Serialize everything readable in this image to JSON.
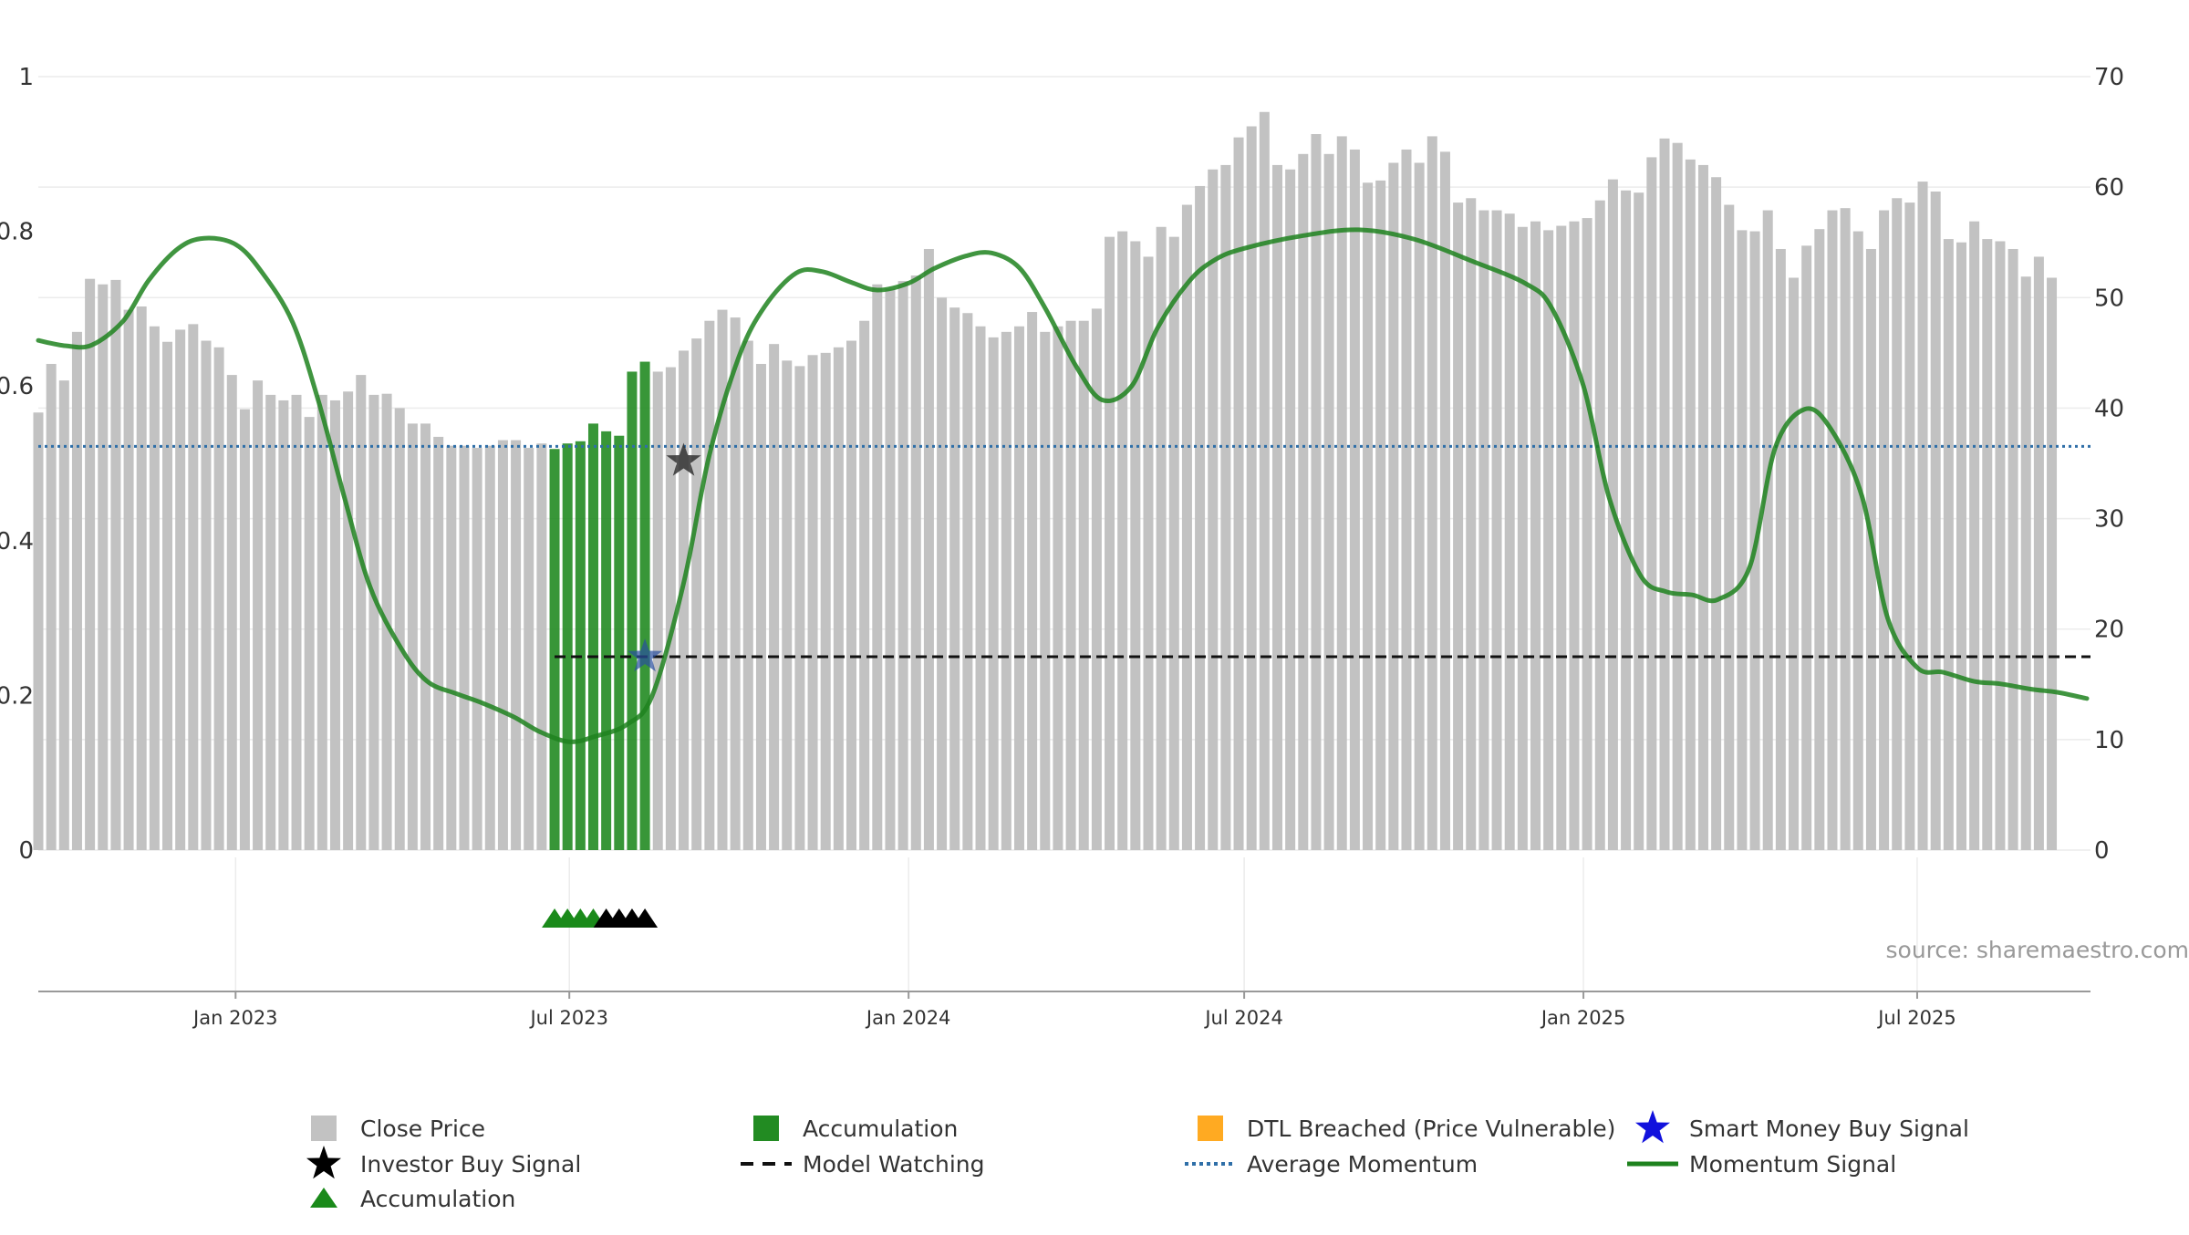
{
  "chart_data": {
    "type": "bar",
    "title": "",
    "source": "source: sharemaestro.com",
    "x_axis": {
      "range": [
        "2022-09-16",
        "2025-10-03"
      ],
      "ticks": [
        {
          "date": "2023-01-01",
          "label": "Jan 2023"
        },
        {
          "date": "2023-07-01",
          "label": "Jul 2023"
        },
        {
          "date": "2024-01-01",
          "label": "Jan 2024"
        },
        {
          "date": "2024-07-01",
          "label": "Jul 2024"
        },
        {
          "date": "2025-01-01",
          "label": "Jan 2025"
        },
        {
          "date": "2025-07-01",
          "label": "Jul 2025"
        }
      ]
    },
    "left_axis": {
      "min": 0,
      "max": 1,
      "ticks": [
        0,
        0.2,
        0.4,
        0.6,
        0.8,
        1
      ],
      "tick_labels": [
        "0",
        "0.2",
        "0.4",
        "0.6",
        "0.8",
        "1"
      ]
    },
    "right_axis": {
      "min": 0,
      "max": 70,
      "ticks": [
        0,
        10,
        20,
        30,
        40,
        50,
        60,
        70
      ],
      "tick_labels": [
        "0",
        "10",
        "20",
        "30",
        "40",
        "50",
        "60",
        "70"
      ]
    },
    "grid": true,
    "bar_start_date": "2022-09-16",
    "bar_interval_days": 7,
    "close_price": [
      39.6,
      44.0,
      42.5,
      46.9,
      51.7,
      51.2,
      51.6,
      48.9,
      49.2,
      47.4,
      46.0,
      47.1,
      47.6,
      46.1,
      45.5,
      43.0,
      39.9,
      42.5,
      41.2,
      40.7,
      41.2,
      39.2,
      41.2,
      40.7,
      41.5,
      43.0,
      41.2,
      41.3,
      40.0,
      38.6,
      38.6,
      37.4,
      36.6,
      36.6,
      36.4,
      36.6,
      37.1,
      37.1,
      36.4,
      36.8,
      37.0,
      38.6,
      37.9,
      37.5,
      43.3,
      44.2,
      43.0,
      43.7,
      43.3,
      43.7,
      45.2,
      46.3,
      47.9,
      48.9,
      48.2,
      46.1,
      44.0,
      45.8,
      44.3,
      43.8,
      44.8,
      45.0,
      45.5,
      46.1,
      47.9,
      51.2,
      50.8,
      51.5,
      52.0,
      54.4,
      50.0,
      49.1,
      48.6,
      47.4,
      46.4,
      46.9,
      47.4,
      48.7,
      46.9,
      47.4,
      47.9,
      47.9,
      49.0,
      55.5,
      56.0,
      55.1,
      53.7,
      56.4,
      55.5,
      58.4,
      60.1,
      61.6,
      62.0,
      64.5,
      65.5,
      66.8,
      62.0,
      61.6,
      63.0,
      64.8,
      63.0,
      64.6,
      63.4,
      60.4,
      60.6,
      62.2,
      63.4,
      62.2,
      64.6,
      63.2,
      58.6,
      59.0,
      57.9,
      57.9,
      57.6,
      56.4,
      56.9,
      56.1,
      56.5,
      56.9,
      57.2,
      58.8,
      60.7,
      59.7,
      59.5,
      62.7,
      64.4,
      64.0,
      62.5,
      62.0,
      60.9,
      58.4,
      56.1,
      56.0,
      57.9,
      54.4,
      51.8,
      54.7,
      56.2,
      57.9,
      58.1,
      56.0,
      54.4,
      57.9,
      59.0,
      58.6,
      60.5,
      59.6,
      55.3,
      55.0,
      56.9,
      55.3,
      55.1,
      54.4,
      51.9,
      53.7,
      51.8
    ],
    "accumulation_bars": [
      {
        "date": "2023-06-23",
        "value": 36.3
      },
      {
        "date": "2023-06-30",
        "value": 36.8
      },
      {
        "date": "2023-07-07",
        "value": 37.0
      },
      {
        "date": "2023-07-14",
        "value": 38.6
      },
      {
        "date": "2023-07-21",
        "value": 37.9
      },
      {
        "date": "2023-07-28",
        "value": 37.5
      },
      {
        "date": "2023-08-04",
        "value": 43.3
      },
      {
        "date": "2023-08-11",
        "value": 44.2
      }
    ],
    "momentum_signal": [
      [
        "2022-09-16",
        0.659
      ],
      [
        "2022-10-01",
        0.652
      ],
      [
        "2022-10-15",
        0.653
      ],
      [
        "2022-11-01",
        0.684
      ],
      [
        "2022-11-15",
        0.737
      ],
      [
        "2022-12-01",
        0.778
      ],
      [
        "2022-12-15",
        0.791
      ],
      [
        "2023-01-01",
        0.783
      ],
      [
        "2023-01-15",
        0.748
      ],
      [
        "2023-02-01",
        0.682
      ],
      [
        "2023-02-15",
        0.58
      ],
      [
        "2023-03-01",
        0.456
      ],
      [
        "2023-03-15",
        0.34
      ],
      [
        "2023-04-01",
        0.26
      ],
      [
        "2023-04-15",
        0.218
      ],
      [
        "2023-05-01",
        0.202
      ],
      [
        "2023-05-15",
        0.19
      ],
      [
        "2023-06-01",
        0.172
      ],
      [
        "2023-06-15",
        0.153
      ],
      [
        "2023-07-01",
        0.14
      ],
      [
        "2023-07-15",
        0.147
      ],
      [
        "2023-08-01",
        0.162
      ],
      [
        "2023-08-15",
        0.2
      ],
      [
        "2023-09-01",
        0.345
      ],
      [
        "2023-09-15",
        0.511
      ],
      [
        "2023-10-01",
        0.638
      ],
      [
        "2023-10-15",
        0.703
      ],
      [
        "2023-11-01",
        0.746
      ],
      [
        "2023-11-15",
        0.748
      ],
      [
        "2023-12-01",
        0.734
      ],
      [
        "2023-12-15",
        0.724
      ],
      [
        "2024-01-01",
        0.733
      ],
      [
        "2024-01-15",
        0.752
      ],
      [
        "2024-02-01",
        0.768
      ],
      [
        "2024-02-15",
        0.772
      ],
      [
        "2024-03-01",
        0.753
      ],
      [
        "2024-03-15",
        0.701
      ],
      [
        "2024-04-01",
        0.625
      ],
      [
        "2024-04-15",
        0.582
      ],
      [
        "2024-05-01",
        0.6
      ],
      [
        "2024-05-15",
        0.675
      ],
      [
        "2024-06-01",
        0.735
      ],
      [
        "2024-06-15",
        0.763
      ],
      [
        "2024-07-01",
        0.778
      ],
      [
        "2024-08-01",
        0.794
      ],
      [
        "2024-09-01",
        0.802
      ],
      [
        "2024-10-01",
        0.79
      ],
      [
        "2024-11-01",
        0.762
      ],
      [
        "2024-12-01",
        0.732
      ],
      [
        "2024-12-15",
        0.7
      ],
      [
        "2025-01-01",
        0.6
      ],
      [
        "2025-01-15",
        0.455
      ],
      [
        "2025-02-01",
        0.355
      ],
      [
        "2025-02-15",
        0.334
      ],
      [
        "2025-03-01",
        0.33
      ],
      [
        "2025-03-15",
        0.324
      ],
      [
        "2025-04-01",
        0.365
      ],
      [
        "2025-04-15",
        0.52
      ],
      [
        "2025-05-01",
        0.57
      ],
      [
        "2025-05-15",
        0.545
      ],
      [
        "2025-06-01",
        0.458
      ],
      [
        "2025-06-15",
        0.3
      ],
      [
        "2025-07-01",
        0.236
      ],
      [
        "2025-07-15",
        0.23
      ],
      [
        "2025-08-01",
        0.218
      ],
      [
        "2025-08-15",
        0.215
      ],
      [
        "2025-09-01",
        0.208
      ],
      [
        "2025-09-15",
        0.204
      ],
      [
        "2025-10-01",
        0.196
      ]
    ],
    "average_momentum": 0.522,
    "model_watching": {
      "value": 0.25,
      "start_date": "2023-06-23",
      "end_date": "2025-10-03"
    },
    "investor_buy_signal": {
      "date": "2023-09-01",
      "value": 0.503
    },
    "smart_money_buy_signal": {
      "date": "2023-08-11",
      "value": 0.25
    },
    "markers": [
      {
        "date": "2023-06-23",
        "type": "Accumulation"
      },
      {
        "date": "2023-06-30",
        "type": "Accumulation"
      },
      {
        "date": "2023-07-07",
        "type": "Accumulation"
      },
      {
        "date": "2023-07-14",
        "type": "Accumulation"
      },
      {
        "date": "2023-07-21",
        "type": "Investor Buy Signal"
      },
      {
        "date": "2023-07-28",
        "type": "Investor Buy Signal"
      },
      {
        "date": "2023-08-04",
        "type": "Investor Buy Signal"
      },
      {
        "date": "2023-08-11",
        "type": "Investor Buy Signal"
      }
    ],
    "legend": {
      "placement": "bottom",
      "items": [
        {
          "key": "close",
          "label": "Close Price"
        },
        {
          "key": "accum_bar",
          "label": "Accumulation"
        },
        {
          "key": "dtl",
          "label": "DTL Breached (Price Vulnerable)"
        },
        {
          "key": "smart",
          "label": "Smart Money Buy Signal"
        },
        {
          "key": "investor",
          "label": "Investor Buy Signal"
        },
        {
          "key": "watch",
          "label": "Model Watching"
        },
        {
          "key": "avg",
          "label": "Average Momentum"
        },
        {
          "key": "momentum",
          "label": "Momentum Signal"
        },
        {
          "key": "accum_tri",
          "label": "Accumulation"
        }
      ]
    },
    "colors": {
      "close": "#c2c2c2",
      "accumulation": "#228b22",
      "accumulation_marker": "#1a8a1a",
      "dtl": "#ffaa22",
      "smart_money": "#1111dd",
      "investor": "#000000",
      "momentum": "#1e821e",
      "average": "#2f6fa8",
      "watch": "#111111",
      "grid": "#ececec"
    }
  }
}
